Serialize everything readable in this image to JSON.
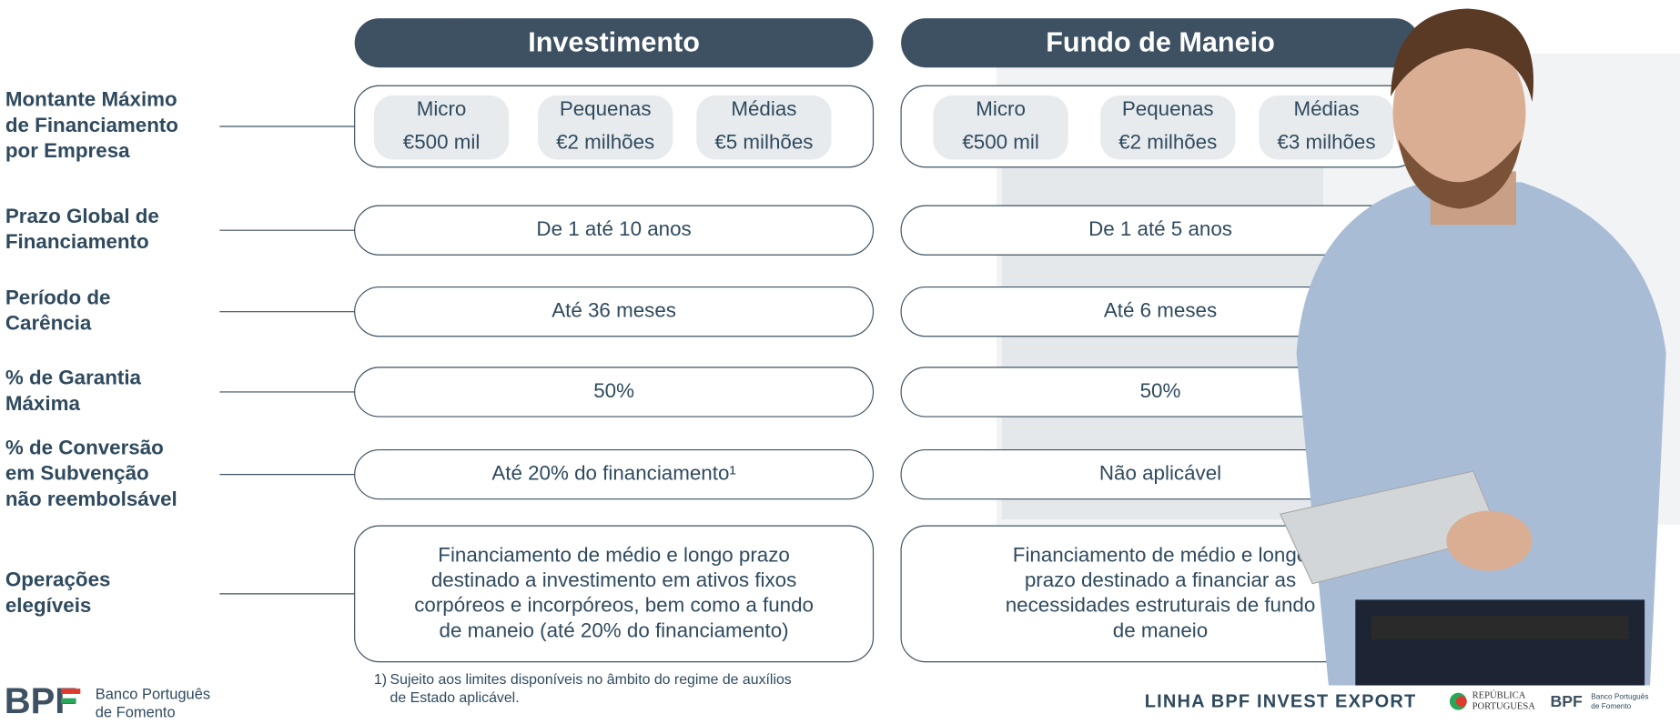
{
  "columns": [
    "Investimento",
    "Fundo de Maneio"
  ],
  "rows": [
    {
      "label": [
        "Montante Máximo",
        "de Financiamento",
        "por Empresa"
      ],
      "tiers": [
        [
          {
            "name": "Micro",
            "amount": "€500 mil"
          },
          {
            "name": "Pequenas",
            "amount": "€2 milhões"
          },
          {
            "name": "Médias",
            "amount": "€5 milhões"
          }
        ],
        [
          {
            "name": "Micro",
            "amount": "€500 mil"
          },
          {
            "name": "Pequenas",
            "amount": "€2 milhões"
          },
          {
            "name": "Médias",
            "amount": "€3 milhões"
          }
        ]
      ]
    },
    {
      "label": [
        "Prazo Global de",
        "Financiamento"
      ],
      "cells": [
        [
          "De 1 até 10 anos"
        ],
        [
          "De 1 até 5 anos"
        ]
      ]
    },
    {
      "label": [
        "Período de",
        "Carência"
      ],
      "cells": [
        [
          "Até 36 meses"
        ],
        [
          "Até 6 meses"
        ]
      ]
    },
    {
      "label": [
        "% de Garantia",
        "Máxima"
      ],
      "cells": [
        [
          "50%"
        ],
        [
          "50%"
        ]
      ]
    },
    {
      "label": [
        "% de Conversão",
        "em Subvenção",
        "não reembolsável"
      ],
      "cells": [
        [
          "Até 20% do financiamento¹"
        ],
        [
          "Não aplicável"
        ]
      ]
    },
    {
      "label": [
        "Operações",
        "elegíveis"
      ],
      "cells": [
        [
          "Financiamento de médio e longo prazo",
          "destinado a investimento em ativos fixos",
          "corpóreos e incorpóreos, bem como a fundo",
          "de maneio (até 20% do financiamento)"
        ],
        [
          "Financiamento de médio e longo",
          "prazo destinado a financiar as",
          "necessidades estruturais de fundo",
          "de maneio"
        ]
      ]
    }
  ],
  "footnote": {
    "marker": "1)",
    "lines": [
      "Sujeito aos limites disponíveis no âmbito do regime de auxílios",
      "de Estado aplicável."
    ]
  },
  "brand": {
    "logo": "BPF",
    "name": [
      "Banco Português",
      "de Fomento"
    ]
  },
  "footer_title": "LINHA BPF INVEST EXPORT",
  "partner": [
    "REPÚBLICA",
    "PORTUGUESA"
  ]
}
